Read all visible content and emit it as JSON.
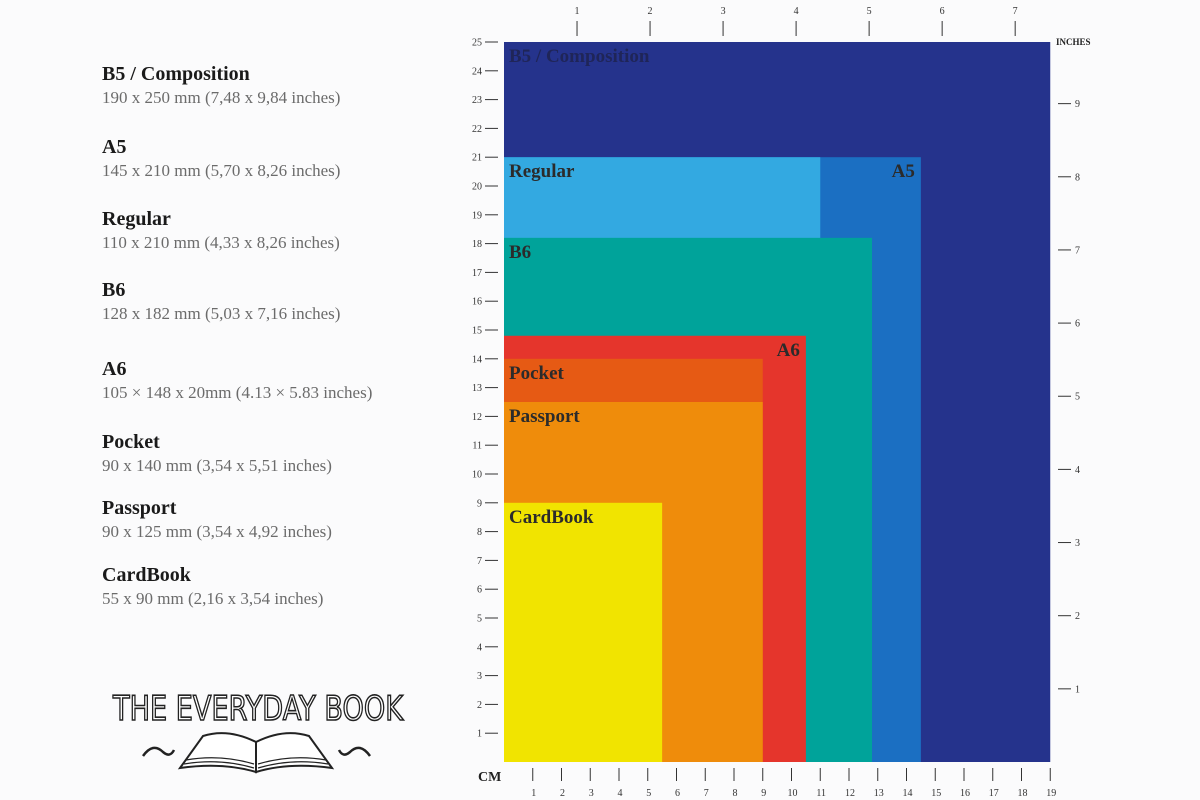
{
  "formats": [
    {
      "name": "B5 / Composition",
      "dims": "190 x 250 mm (7,48 x 9,84 inches)",
      "width_mm": 190,
      "height_mm": 250,
      "color": "#25338c",
      "label_align": "left"
    },
    {
      "name": "A5",
      "dims": "145 x 210 mm (5,70 x 8,26 inches)",
      "width_mm": 145,
      "height_mm": 210,
      "color": "#1b6fc2",
      "label_align": "right"
    },
    {
      "name": "Regular",
      "dims": "110 x 210 mm (4,33 x 8,26 inches)",
      "width_mm": 110,
      "height_mm": 210,
      "color": "#33a9e1",
      "label_align": "left"
    },
    {
      "name": "B6",
      "dims": "128 x 182 mm (5,03 x 7,16 inches)",
      "width_mm": 128,
      "height_mm": 182,
      "color": "#00a39a",
      "label_align": "left"
    },
    {
      "name": "A6",
      "dims": "105 × 148 x 20mm (4.13 × 5.83 inches)",
      "width_mm": 105,
      "height_mm": 148,
      "color": "#e5352c",
      "label_align": "right"
    },
    {
      "name": "Pocket",
      "dims": "90 x 140 mm (3,54 x 5,51 inches)",
      "width_mm": 90,
      "height_mm": 140,
      "color": "#e65a14",
      "label_align": "left"
    },
    {
      "name": "Passport",
      "dims": "90 x 125 mm (3,54 x 4,92 inches)",
      "width_mm": 90,
      "height_mm": 125,
      "color": "#ef8c0b",
      "label_align": "left"
    },
    {
      "name": "CardBook",
      "dims": "55 x 90 mm (2,16 x 3,54 inches)",
      "width_mm": 55,
      "height_mm": 90,
      "color": "#f1e400",
      "label_align": "left"
    }
  ],
  "rulers": {
    "cm_label": "CM",
    "inches_label": "INCHES",
    "cm_vertical_max": 25,
    "cm_horizontal_max": 19,
    "inches_horizontal_max": 7,
    "inches_vertical_max": 9
  },
  "logo": {
    "text": "THE EVERYDAY BOOK"
  }
}
